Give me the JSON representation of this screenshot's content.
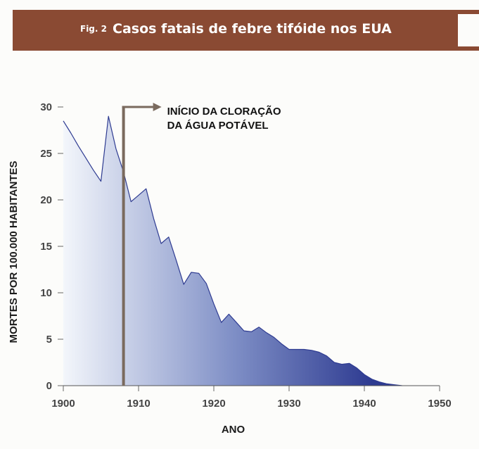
{
  "header": {
    "fig_label": "Fig. 2",
    "title": "Casos fatais de febre tifóide nos EUA"
  },
  "colors": {
    "header_bg": "#8a4a33",
    "area_dark": "#2e3b91",
    "area_light": "#f3f6fb",
    "marker": "#7a6a5e"
  },
  "chart_data": {
    "type": "area",
    "xlabel": "ANO",
    "ylabel": "MORTES POR 100.000 HABITANTES",
    "xlim": [
      1900,
      1950
    ],
    "ylim": [
      0,
      30
    ],
    "x_ticks": [
      "1900",
      "1910",
      "1920",
      "1930",
      "1940",
      "1950"
    ],
    "y_ticks": [
      "0",
      "5",
      "10",
      "15",
      "20",
      "25",
      "30"
    ],
    "grid": false,
    "series": [
      {
        "x": [
          1900,
          1901,
          1902,
          1903,
          1904,
          1905,
          1906,
          1907,
          1908,
          1909,
          1910,
          1911,
          1912,
          1913,
          1914,
          1915,
          1916,
          1917,
          1918,
          1919,
          1920,
          1921,
          1922,
          1923,
          1924,
          1925,
          1926,
          1927,
          1928,
          1929,
          1930,
          1931,
          1932,
          1933,
          1934,
          1935,
          1936,
          1937,
          1938,
          1939,
          1940,
          1941,
          1942,
          1943,
          1944,
          1945
        ],
        "y": [
          28.5,
          27.2,
          25.8,
          24.5,
          23.2,
          22,
          29,
          25.5,
          23,
          19.8,
          20.5,
          21.2,
          18,
          15.3,
          16,
          13.5,
          10.9,
          12.2,
          12.1,
          11,
          8.8,
          6.8,
          7.7,
          6.8,
          5.9,
          5.8,
          6.3,
          5.7,
          5.2,
          4.5,
          3.9,
          3.9,
          3.9,
          3.8,
          3.6,
          3.2,
          2.5,
          2.3,
          2.4,
          1.9,
          1.2,
          0.7,
          0.4,
          0.2,
          0.1,
          0
        ]
      }
    ],
    "annotation": {
      "x": 1908,
      "line1": "INÍCIO DA CLORAÇÃO",
      "line2": "DA ÁGUA POTÁVEL"
    }
  }
}
